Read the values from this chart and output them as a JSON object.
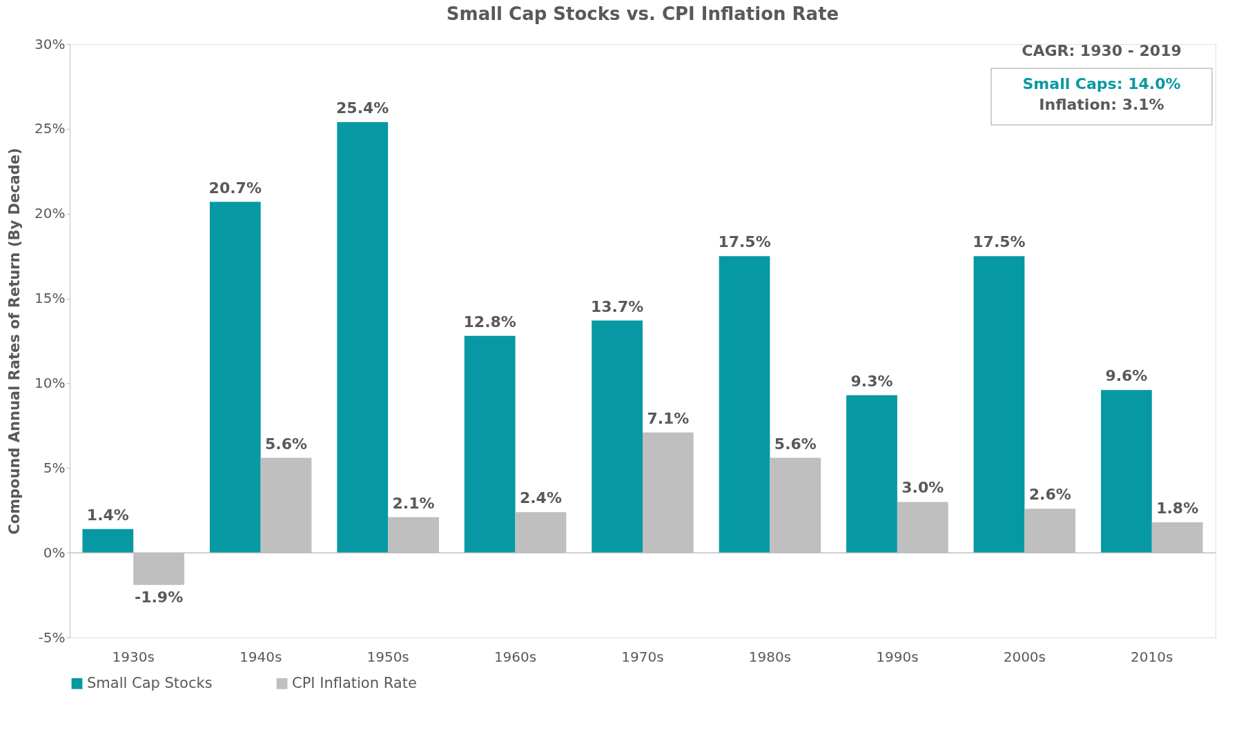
{
  "chart_data": {
    "type": "bar",
    "title": "Small Cap Stocks vs. CPI Inflation Rate",
    "ylabel": "Compound Annual Rates of Return (By Decade)",
    "categories": [
      "1930s",
      "1940s",
      "1950s",
      "1960s",
      "1970s",
      "1980s",
      "1990s",
      "2000s",
      "2010s"
    ],
    "series": [
      {
        "name": "Small Cap Stocks",
        "color": "#0799a3",
        "values": [
          1.4,
          20.7,
          25.4,
          12.8,
          13.7,
          17.5,
          9.3,
          17.5,
          9.6
        ],
        "value_labels": [
          "1.4%",
          "20.7%",
          "25.4%",
          "12.8%",
          "13.7%",
          "17.5%",
          "9.3%",
          "17.5%",
          "9.6%"
        ]
      },
      {
        "name": "CPI Inflation Rate",
        "color": "#bfbfbf",
        "values": [
          -1.9,
          5.6,
          2.1,
          2.4,
          7.1,
          5.6,
          3.0,
          2.6,
          1.8
        ],
        "value_labels": [
          "-1.9%",
          "5.6%",
          "2.1%",
          "2.4%",
          "7.1%",
          "5.6%",
          "3.0%",
          "2.6%",
          "1.8%"
        ]
      }
    ],
    "ylim": [
      -5,
      30
    ],
    "yticks": [
      {
        "value": -5,
        "label": "-5%"
      },
      {
        "value": 0,
        "label": "0%"
      },
      {
        "value": 5,
        "label": "5%"
      },
      {
        "value": 10,
        "label": "10%"
      },
      {
        "value": 15,
        "label": "15%"
      },
      {
        "value": 20,
        "label": "20%"
      },
      {
        "value": 25,
        "label": "25%"
      },
      {
        "value": 30,
        "label": "30%"
      }
    ],
    "legend": "bottom",
    "annotations": [
      "CAGR: 1930  - 2019",
      "Small Caps: 14.0%",
      "Inflation: 3.1%"
    ]
  }
}
